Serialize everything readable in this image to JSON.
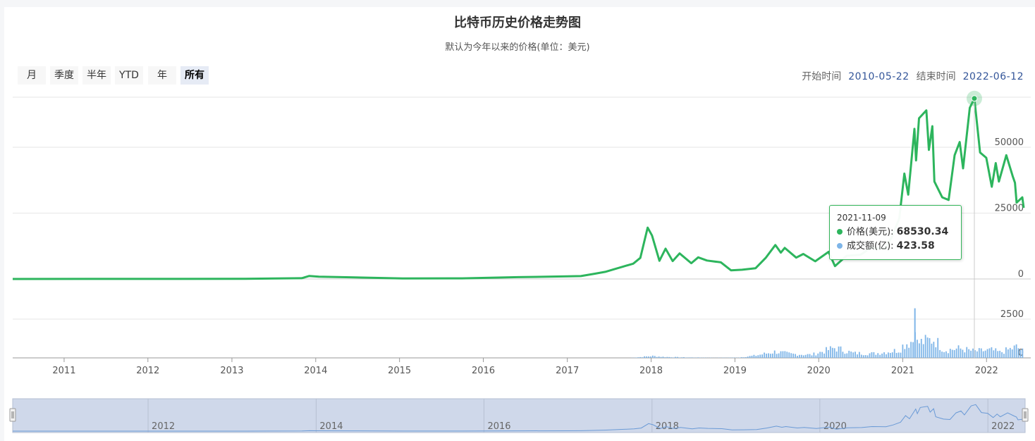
{
  "chart_data": {
    "type": "line",
    "title": "比特币历史价格走势图",
    "subtitle": "默认为今年以来的价格(单位：美元)",
    "x_range": [
      "2010-05-22",
      "2022-06-12"
    ],
    "x_ticks": [
      "2011",
      "2012",
      "2013",
      "2014",
      "2015",
      "2016",
      "2017",
      "2018",
      "2019",
      "2020",
      "2021",
      "2022"
    ],
    "price_axis": {
      "ticks": [
        "0",
        "25000",
        "50000"
      ],
      "ylim": [
        0,
        69000
      ]
    },
    "volume_axis": {
      "ticks": [
        "0",
        "2500"
      ],
      "ylim": [
        0,
        4000
      ]
    },
    "colors": {
      "price": "#2db55d",
      "volume": "#7eb5e8",
      "navigator": "#6a9ad6"
    },
    "series": [
      {
        "name": "价格(美元)",
        "points": [
          [
            "2010-05-22",
            0
          ],
          [
            "2013-03-01",
            50
          ],
          [
            "2013-11-01",
            300
          ],
          [
            "2013-12-04",
            1150
          ],
          [
            "2014-01-15",
            850
          ],
          [
            "2014-06-01",
            650
          ],
          [
            "2015-01-15",
            200
          ],
          [
            "2015-10-01",
            250
          ],
          [
            "2016-06-01",
            700
          ],
          [
            "2017-01-01",
            990
          ],
          [
            "2017-03-01",
            1100
          ],
          [
            "2017-05-01",
            2000
          ],
          [
            "2017-06-15",
            2700
          ],
          [
            "2017-09-01",
            4700
          ],
          [
            "2017-10-15",
            5800
          ],
          [
            "2017-11-15",
            8000
          ],
          [
            "2017-12-17",
            19500
          ],
          [
            "2018-01-05",
            16500
          ],
          [
            "2018-02-06",
            6900
          ],
          [
            "2018-03-05",
            11500
          ],
          [
            "2018-04-05",
            6800
          ],
          [
            "2018-05-05",
            9700
          ],
          [
            "2018-06-25",
            6000
          ],
          [
            "2018-07-25",
            8200
          ],
          [
            "2018-09-01",
            7000
          ],
          [
            "2018-11-01",
            6300
          ],
          [
            "2018-12-15",
            3300
          ],
          [
            "2019-02-01",
            3500
          ],
          [
            "2019-04-01",
            4100
          ],
          [
            "2019-05-15",
            8000
          ],
          [
            "2019-06-26",
            12900
          ],
          [
            "2019-07-20",
            10000
          ],
          [
            "2019-08-06",
            11800
          ],
          [
            "2019-09-25",
            8100
          ],
          [
            "2019-10-26",
            9500
          ],
          [
            "2019-12-17",
            6700
          ],
          [
            "2020-02-13",
            10300
          ],
          [
            "2020-03-12",
            4900
          ],
          [
            "2020-05-01",
            8800
          ],
          [
            "2020-07-01",
            9200
          ],
          [
            "2020-08-15",
            11800
          ],
          [
            "2020-10-15",
            11500
          ],
          [
            "2020-11-15",
            16000
          ],
          [
            "2020-12-17",
            23000
          ],
          [
            "2021-01-08",
            40000
          ],
          [
            "2021-01-25",
            32000
          ],
          [
            "2021-02-21",
            57000
          ],
          [
            "2021-02-28",
            45000
          ],
          [
            "2021-03-13",
            61000
          ],
          [
            "2021-04-14",
            64000
          ],
          [
            "2021-04-25",
            49000
          ],
          [
            "2021-05-10",
            58000
          ],
          [
            "2021-05-19",
            37000
          ],
          [
            "2021-06-22",
            31000
          ],
          [
            "2021-07-20",
            30000
          ],
          [
            "2021-08-15",
            47000
          ],
          [
            "2021-09-06",
            52000
          ],
          [
            "2021-09-21",
            42000
          ],
          [
            "2021-10-20",
            65000
          ],
          [
            "2021-11-09",
            68530.34
          ],
          [
            "2021-12-04",
            48000
          ],
          [
            "2021-12-31",
            46000
          ],
          [
            "2022-01-24",
            35000
          ],
          [
            "2022-02-10",
            44000
          ],
          [
            "2022-02-24",
            37000
          ],
          [
            "2022-03-28",
            47000
          ],
          [
            "2022-04-25",
            39000
          ],
          [
            "2022-05-05",
            36500
          ],
          [
            "2022-05-12",
            29000
          ],
          [
            "2022-06-06",
            31000
          ],
          [
            "2022-06-12",
            27000
          ]
        ]
      },
      {
        "name": "成交额(亿)",
        "points": [
          [
            "2010-05-22",
            0
          ],
          [
            "2017-10-01",
            0
          ],
          [
            "2017-11-15",
            50
          ],
          [
            "2018-01-05",
            120
          ],
          [
            "2018-03-01",
            60
          ],
          [
            "2018-06-01",
            30
          ],
          [
            "2018-10-01",
            10
          ],
          [
            "2019-01-15",
            20
          ],
          [
            "2019-04-01",
            150
          ],
          [
            "2019-06-26",
            400
          ],
          [
            "2019-09-01",
            250
          ],
          [
            "2019-12-01",
            200
          ],
          [
            "2020-03-12",
            650
          ],
          [
            "2020-06-01",
            300
          ],
          [
            "2020-09-01",
            280
          ],
          [
            "2020-12-17",
            500
          ],
          [
            "2021-01-08",
            900
          ],
          [
            "2021-02-15",
            1100
          ],
          [
            "2021-02-23",
            3200
          ],
          [
            "2021-03-05",
            950
          ],
          [
            "2021-05-19",
            1200
          ],
          [
            "2021-07-01",
            500
          ],
          [
            "2021-09-06",
            600
          ],
          [
            "2021-11-09",
            423.58
          ],
          [
            "2022-01-24",
            500
          ],
          [
            "2022-03-01",
            350
          ],
          [
            "2022-05-12",
            700
          ],
          [
            "2022-06-12",
            400
          ]
        ]
      }
    ],
    "tooltip": {
      "date": "2021-11-09",
      "rows": [
        {
          "label": "价格(美元)",
          "value": "68530.34",
          "color": "#2db55d"
        },
        {
          "label": "成交额(亿)",
          "value": "423.58",
          "color": "#7eb5e8"
        }
      ]
    },
    "navigator_ticks": [
      "2012",
      "2014",
      "2016",
      "2018",
      "2020",
      "2022"
    ],
    "grid": true
  },
  "range_buttons": [
    "月",
    "季度",
    "半年",
    "YTD",
    "年",
    "所有"
  ],
  "range_active": "所有",
  "date_range": {
    "start_label": "开始时间",
    "start": "2010-05-22",
    "end_label": "结束时间",
    "end": "2022-06-12"
  }
}
